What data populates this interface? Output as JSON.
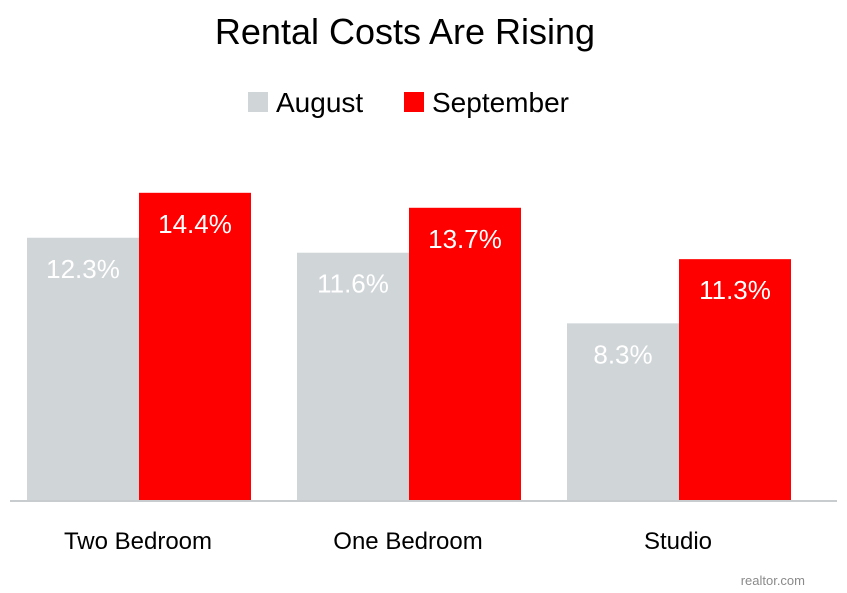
{
  "chart_data": {
    "type": "bar",
    "title": "Rental Costs Are Rising",
    "categories": [
      "Two Bedroom",
      "One Bedroom",
      "Studio"
    ],
    "series": [
      {
        "name": "August",
        "color": "#d0d5d8",
        "values": [
          12.3,
          11.6,
          8.3
        ],
        "labels": [
          "12.3%",
          "11.6%",
          "8.3%"
        ]
      },
      {
        "name": "September",
        "color": "#ff0000",
        "values": [
          14.4,
          13.7,
          11.3
        ],
        "labels": [
          "14.4%",
          "13.7%",
          "11.3%"
        ]
      }
    ],
    "ylim": [
      0,
      16.4
    ],
    "grid": false,
    "legend_position": "top-center",
    "source": "realtor.com",
    "axis_color": "#c8cccf"
  }
}
